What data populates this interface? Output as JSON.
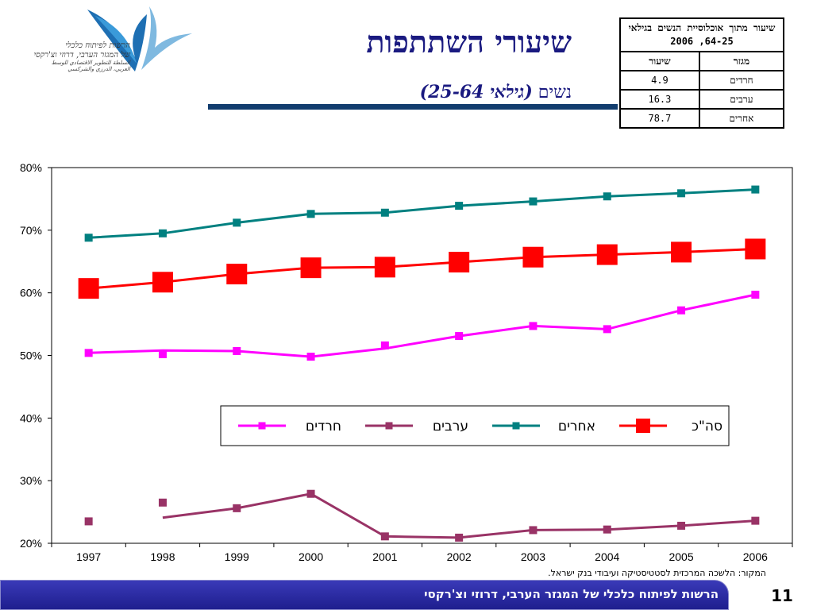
{
  "header": {
    "title": "שיעורי השתתפות",
    "subtitle_word": "נשים",
    "subtitle_paren": "(גילאי 25-64)"
  },
  "logo": {
    "line1": "הרשות לפיתוח כלכלי",
    "line2": "של המגזר הערבי, דרוזי וצ'רקסי",
    "line3": "السلطة للتطوير الاقتصادي للوسط",
    "line4": "العربي، الدرزي والشركسي"
  },
  "info_table": {
    "header": "שיעור מתוך אוכלוסיית הנשים בגילאי 64-25, 2006",
    "col_sector": "מגזר",
    "col_rate": "שיעור",
    "rows": [
      {
        "sector": "חרדים",
        "rate": "4.9"
      },
      {
        "sector": "ערבים",
        "rate": "16.3"
      },
      {
        "sector": "אחרים",
        "rate": "78.7"
      }
    ]
  },
  "chart_data": {
    "type": "line",
    "title": "",
    "xlabel": "",
    "ylabel": "",
    "x": [
      "1997",
      "1998",
      "1999",
      "2000",
      "2001",
      "2002",
      "2003",
      "2004",
      "2005",
      "2006"
    ],
    "ylim": [
      20,
      80
    ],
    "yticks": [
      "20%",
      "30%",
      "40%",
      "50%",
      "60%",
      "70%",
      "80%"
    ],
    "legend_position": "center-right",
    "grid": false,
    "series": [
      {
        "name": "חרדים",
        "color": "#ff00ff",
        "marker": "small-square",
        "values": [
          50.4,
          50.2,
          50.7,
          49.8,
          51.6,
          53.1,
          54.7,
          54.2,
          57.2,
          59.7
        ],
        "line_values": [
          50.4,
          50.8,
          50.7,
          49.8,
          51.1,
          53.1,
          54.7,
          54.2,
          57.2,
          59.7
        ]
      },
      {
        "name": "ערבים",
        "color": "#993366",
        "marker": "small-square",
        "values": [
          23.5,
          26.5,
          25.6,
          27.9,
          21.1,
          20.9,
          22.1,
          22.2,
          22.8,
          23.6
        ],
        "line_values": [
          23.5,
          24.1,
          25.6,
          27.9,
          21.1,
          20.9,
          22.1,
          22.2,
          22.8,
          23.6
        ],
        "break_after_index": 0
      },
      {
        "name": "אחרים",
        "color": "#008080",
        "marker": "small-square",
        "values": [
          68.8,
          69.5,
          71.2,
          72.6,
          72.8,
          73.9,
          74.6,
          75.4,
          75.9,
          76.5
        ]
      },
      {
        "name": "סה\"כ",
        "color": "#ff0000",
        "marker": "large-square",
        "values": [
          60.7,
          61.7,
          63.0,
          64.0,
          64.1,
          64.9,
          65.7,
          66.1,
          66.5,
          67.0
        ]
      }
    ]
  },
  "source": "המקור: הלשכה המרכזית לסטטיסטיקה ועיבודי בנק ישראל.",
  "footer": {
    "text": "הרשות לפיתוח כלכלי של המגזר הערבי, דרוזי וצ'רקסי",
    "page": "11"
  }
}
